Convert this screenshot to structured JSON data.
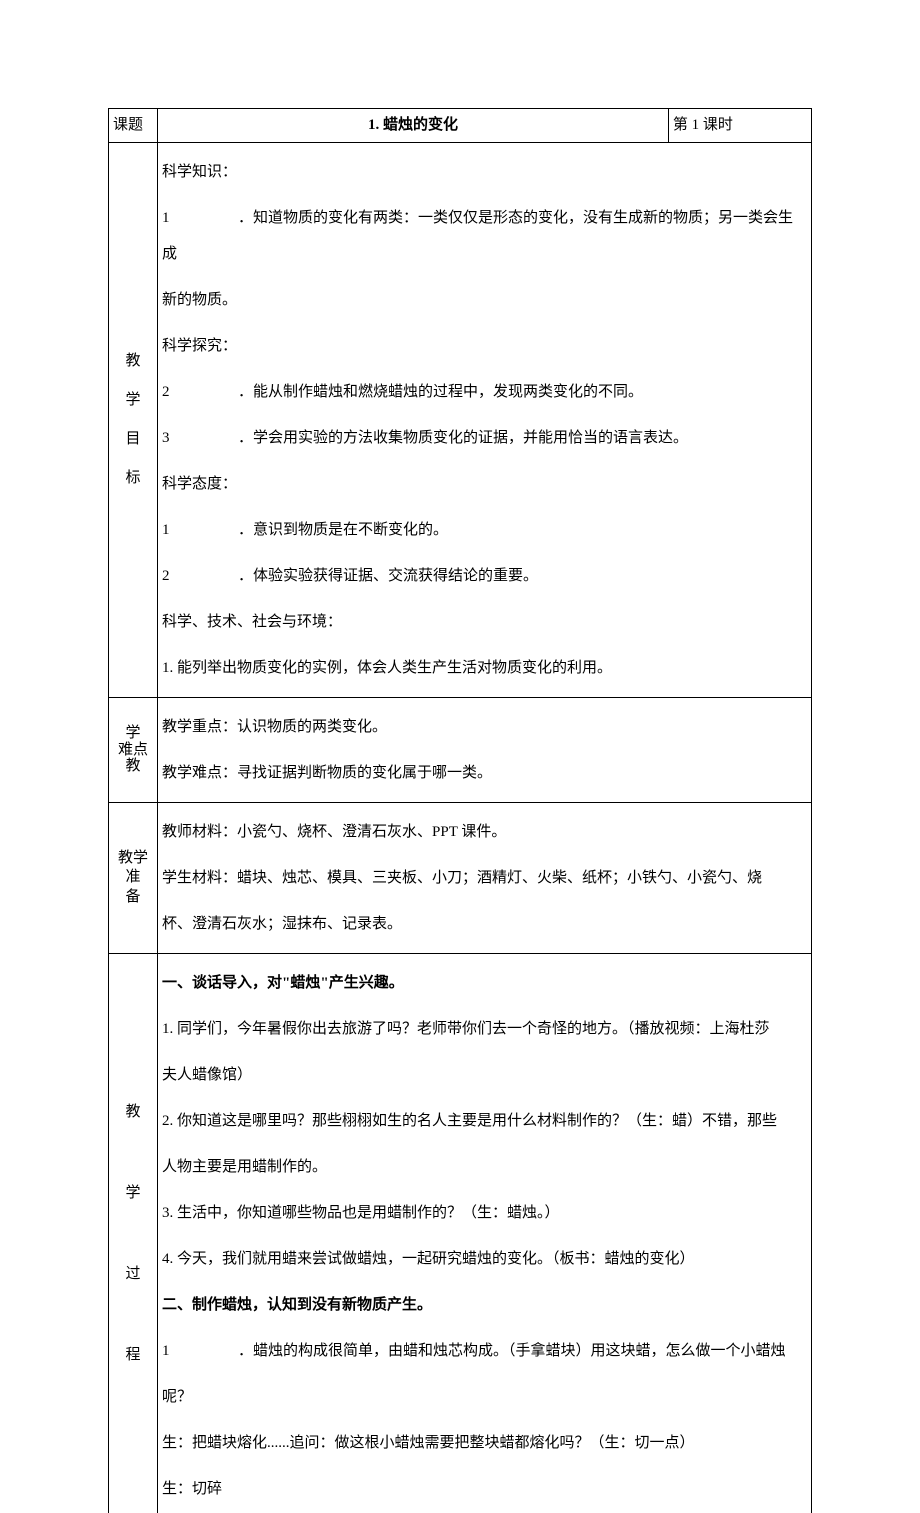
{
  "header": {
    "label_topic": "课题",
    "title": "1. 蜡烛的变化",
    "period": "第 1 课时"
  },
  "rows": {
    "goals": {
      "label": "教学目标",
      "lines": [
        {
          "t": "p",
          "text": "科学知识："
        },
        {
          "t": "num",
          "num": "1",
          "text": "．知道物质的变化有两类：一类仅仅是形态的变化，没有生成新的物质；另一类会生成"
        },
        {
          "t": "p",
          "text": "新的物质。"
        },
        {
          "t": "p",
          "text": "科学探究："
        },
        {
          "t": "num",
          "num": "2",
          "text": "．能从制作蜡烛和燃烧蜡烛的过程中，发现两类变化的不同。"
        },
        {
          "t": "num",
          "num": "3",
          "text": "．学会用实验的方法收集物质变化的证据，并能用恰当的语言表达。"
        },
        {
          "t": "p",
          "text": "科学态度："
        },
        {
          "t": "num",
          "num": "1",
          "text": "．意识到物质是在不断变化的。"
        },
        {
          "t": "num",
          "num": "2",
          "text": "．体验实验获得证据、交流获得结论的重要。"
        },
        {
          "t": "p",
          "text": "科学、技术、社会与环境："
        },
        {
          "t": "p",
          "text": "1. 能列举出物质变化的实例，体会人类生产生活对物质变化的利用。"
        }
      ]
    },
    "focus": {
      "label": "学难点教",
      "lines": [
        {
          "t": "p",
          "text": "教学重点：认识物质的两类变化。"
        },
        {
          "t": "p",
          "text": "教学难点：寻找证据判断物质的变化属于哪一类。"
        }
      ]
    },
    "prep": {
      "label": "教学准备",
      "lines": [
        {
          "t": "p",
          "text": "教师材料：小瓷勺、烧杯、澄清石灰水、PPT 课件。"
        },
        {
          "t": "p",
          "text": "学生材料：蜡块、烛芯、模具、三夹板、小刀；酒精灯、火柴、纸杯；小铁勺、小瓷勺、烧"
        },
        {
          "t": "p",
          "text": "杯、澄清石灰水；湿抹布、记录表。"
        }
      ]
    },
    "process": {
      "label": "教学过程",
      "lines": [
        {
          "t": "head",
          "text": "一、谈话导入，对\"蜡烛\"产生兴趣。"
        },
        {
          "t": "p",
          "text": "1. 同学们，今年暑假你出去旅游了吗？老师带你们去一个奇怪的地方。（播放视频：上海杜莎"
        },
        {
          "t": "p",
          "text": "夫人蜡像馆）"
        },
        {
          "t": "p",
          "text": "2. 你知道这是哪里吗？那些栩栩如生的名人主要是用什么材料制作的？（生：蜡）不错，那些"
        },
        {
          "t": "p",
          "text": "人物主要是用蜡制作的。"
        },
        {
          "t": "p",
          "text": "3. 生活中，你知道哪些物品也是用蜡制作的？（生：蜡烛。）"
        },
        {
          "t": "p",
          "text": "4. 今天，我们就用蜡来尝试做蜡烛，一起研究蜡烛的变化。（板书：蜡烛的变化）"
        },
        {
          "t": "head",
          "text": "二、制作蜡烛，认知到没有新物质产生。"
        },
        {
          "t": "num",
          "num": "1",
          "text": "．蜡烛的构成很简单，由蜡和烛芯构成。（手拿蜡块）用这块蜡，怎么做一个小蜡烛"
        },
        {
          "t": "p",
          "text": "呢？"
        },
        {
          "t": "p",
          "text": "生：把蜡块熔化......追问：做这根小蜡烛需要把整块蜡都熔化吗？（生：切一点）"
        },
        {
          "t": "p",
          "text": "生：切碎"
        }
      ]
    }
  }
}
